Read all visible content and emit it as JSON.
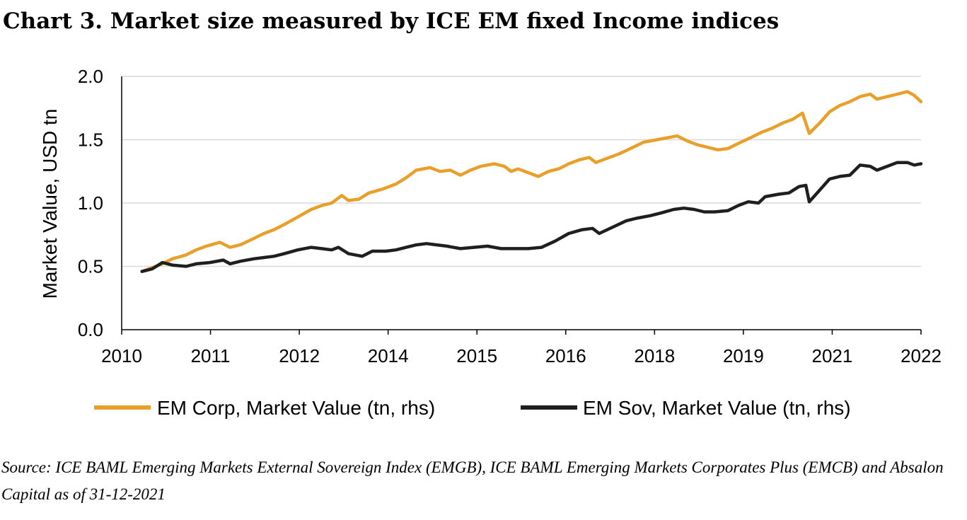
{
  "title": "Chart 3. Market size measured by ICE EM fixed Income indices",
  "source": " Source: ICE BAML Emerging Markets External Sovereign Index (EMGB),  ICE BAML Emerging Markets Corporates Plus (EMCB) and Absalon Capital as of 31-12-2021",
  "colors": {
    "corp": "#E8A02A",
    "sov": "#1f1f1f",
    "grid": "#d9d9d9",
    "axis": "#000000"
  },
  "chart_data": {
    "type": "line",
    "ylabel": "Market Value, USD tn",
    "xlabel": "",
    "ylim": [
      0,
      2
    ],
    "yticks": [
      0,
      0.5,
      1,
      1.5,
      2
    ],
    "ytick_labels": [
      "0.0",
      "0.5",
      "1.0",
      "1.5",
      "2.0"
    ],
    "xlim": [
      2010,
      2021.8
    ],
    "xtick_labels": [
      "2010",
      "2011",
      "2012",
      "2014",
      "2015",
      "2016",
      "2018",
      "2019",
      "2021",
      "2022"
    ],
    "grid": true,
    "legend_position": "bottom",
    "series": [
      {
        "name": "EM Corp, Market Value (tn, rhs)",
        "key": "corp",
        "points": [
          [
            2010.3,
            0.46
          ],
          [
            2010.45,
            0.49
          ],
          [
            2010.6,
            0.52
          ],
          [
            2010.75,
            0.56
          ],
          [
            2010.95,
            0.59
          ],
          [
            2011.1,
            0.63
          ],
          [
            2011.25,
            0.66
          ],
          [
            2011.45,
            0.69
          ],
          [
            2011.6,
            0.65
          ],
          [
            2011.75,
            0.67
          ],
          [
            2011.95,
            0.72
          ],
          [
            2012.1,
            0.76
          ],
          [
            2012.25,
            0.79
          ],
          [
            2012.4,
            0.83
          ],
          [
            2012.6,
            0.89
          ],
          [
            2012.8,
            0.95
          ],
          [
            2012.95,
            0.98
          ],
          [
            2013.1,
            1.0
          ],
          [
            2013.25,
            1.06
          ],
          [
            2013.35,
            1.02
          ],
          [
            2013.5,
            1.03
          ],
          [
            2013.65,
            1.08
          ],
          [
            2013.85,
            1.11
          ],
          [
            2014.05,
            1.15
          ],
          [
            2014.2,
            1.2
          ],
          [
            2014.35,
            1.26
          ],
          [
            2014.55,
            1.28
          ],
          [
            2014.7,
            1.25
          ],
          [
            2014.85,
            1.26
          ],
          [
            2015.0,
            1.22
          ],
          [
            2015.15,
            1.26
          ],
          [
            2015.3,
            1.29
          ],
          [
            2015.5,
            1.31
          ],
          [
            2015.65,
            1.29
          ],
          [
            2015.75,
            1.25
          ],
          [
            2015.85,
            1.27
          ],
          [
            2016.0,
            1.24
          ],
          [
            2016.15,
            1.21
          ],
          [
            2016.3,
            1.25
          ],
          [
            2016.45,
            1.27
          ],
          [
            2016.6,
            1.31
          ],
          [
            2016.75,
            1.34
          ],
          [
            2016.9,
            1.36
          ],
          [
            2017.0,
            1.32
          ],
          [
            2017.15,
            1.35
          ],
          [
            2017.35,
            1.39
          ],
          [
            2017.55,
            1.44
          ],
          [
            2017.7,
            1.48
          ],
          [
            2017.9,
            1.5
          ],
          [
            2018.1,
            1.52
          ],
          [
            2018.2,
            1.53
          ],
          [
            2018.35,
            1.49
          ],
          [
            2018.5,
            1.46
          ],
          [
            2018.65,
            1.44
          ],
          [
            2018.8,
            1.42
          ],
          [
            2018.95,
            1.43
          ],
          [
            2019.1,
            1.47
          ],
          [
            2019.3,
            1.52
          ],
          [
            2019.45,
            1.56
          ],
          [
            2019.6,
            1.59
          ],
          [
            2019.75,
            1.63
          ],
          [
            2019.9,
            1.66
          ],
          [
            2020.05,
            1.71
          ],
          [
            2020.15,
            1.55
          ],
          [
            2020.3,
            1.63
          ],
          [
            2020.45,
            1.72
          ],
          [
            2020.6,
            1.77
          ],
          [
            2020.75,
            1.8
          ],
          [
            2020.9,
            1.84
          ],
          [
            2021.05,
            1.86
          ],
          [
            2021.15,
            1.82
          ],
          [
            2021.3,
            1.84
          ],
          [
            2021.45,
            1.86
          ],
          [
            2021.6,
            1.88
          ],
          [
            2021.7,
            1.85
          ],
          [
            2021.8,
            1.8
          ]
        ]
      },
      {
        "name": "EM Sov, Market Value (tn, rhs)",
        "key": "sov",
        "points": [
          [
            2010.3,
            0.46
          ],
          [
            2010.45,
            0.48
          ],
          [
            2010.6,
            0.53
          ],
          [
            2010.75,
            0.51
          ],
          [
            2010.95,
            0.5
          ],
          [
            2011.1,
            0.52
          ],
          [
            2011.3,
            0.53
          ],
          [
            2011.5,
            0.55
          ],
          [
            2011.6,
            0.52
          ],
          [
            2011.75,
            0.54
          ],
          [
            2011.95,
            0.56
          ],
          [
            2012.1,
            0.57
          ],
          [
            2012.25,
            0.58
          ],
          [
            2012.4,
            0.6
          ],
          [
            2012.6,
            0.63
          ],
          [
            2012.8,
            0.65
          ],
          [
            2012.95,
            0.64
          ],
          [
            2013.1,
            0.63
          ],
          [
            2013.2,
            0.65
          ],
          [
            2013.35,
            0.6
          ],
          [
            2013.55,
            0.58
          ],
          [
            2013.7,
            0.62
          ],
          [
            2013.9,
            0.62
          ],
          [
            2014.05,
            0.63
          ],
          [
            2014.2,
            0.65
          ],
          [
            2014.35,
            0.67
          ],
          [
            2014.5,
            0.68
          ],
          [
            2014.65,
            0.67
          ],
          [
            2014.8,
            0.66
          ],
          [
            2015.0,
            0.64
          ],
          [
            2015.2,
            0.65
          ],
          [
            2015.4,
            0.66
          ],
          [
            2015.6,
            0.64
          ],
          [
            2015.8,
            0.64
          ],
          [
            2016.0,
            0.64
          ],
          [
            2016.2,
            0.65
          ],
          [
            2016.4,
            0.7
          ],
          [
            2016.6,
            0.76
          ],
          [
            2016.8,
            0.79
          ],
          [
            2016.95,
            0.8
          ],
          [
            2017.05,
            0.76
          ],
          [
            2017.25,
            0.81
          ],
          [
            2017.45,
            0.86
          ],
          [
            2017.6,
            0.88
          ],
          [
            2017.8,
            0.9
          ],
          [
            2017.95,
            0.92
          ],
          [
            2018.15,
            0.95
          ],
          [
            2018.3,
            0.96
          ],
          [
            2018.45,
            0.95
          ],
          [
            2018.6,
            0.93
          ],
          [
            2018.75,
            0.93
          ],
          [
            2018.95,
            0.94
          ],
          [
            2019.1,
            0.98
          ],
          [
            2019.25,
            1.01
          ],
          [
            2019.4,
            1.0
          ],
          [
            2019.5,
            1.05
          ],
          [
            2019.7,
            1.07
          ],
          [
            2019.85,
            1.08
          ],
          [
            2020.0,
            1.13
          ],
          [
            2020.1,
            1.14
          ],
          [
            2020.15,
            1.01
          ],
          [
            2020.3,
            1.1
          ],
          [
            2020.45,
            1.19
          ],
          [
            2020.6,
            1.21
          ],
          [
            2020.75,
            1.22
          ],
          [
            2020.9,
            1.3
          ],
          [
            2021.05,
            1.29
          ],
          [
            2021.15,
            1.26
          ],
          [
            2021.3,
            1.29
          ],
          [
            2021.45,
            1.32
          ],
          [
            2021.6,
            1.32
          ],
          [
            2021.7,
            1.3
          ],
          [
            2021.8,
            1.31
          ]
        ]
      }
    ]
  }
}
